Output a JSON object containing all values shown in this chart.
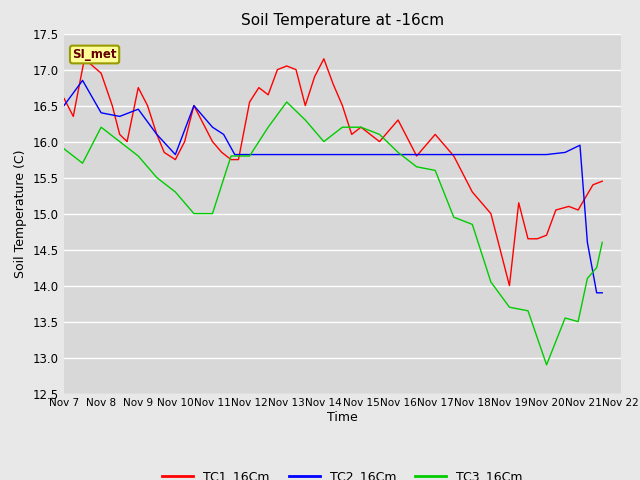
{
  "title": "Soil Temperature at -16cm",
  "xlabel": "Time",
  "ylabel": "Soil Temperature (C)",
  "ylim": [
    12.5,
    17.5
  ],
  "figure_bg": "#e8e8e8",
  "plot_bg": "#d8d8d8",
  "annotation_label": "SI_met",
  "annotation_bg": "#ffff99",
  "annotation_border": "#999900",
  "x_tick_labels": [
    "Nov 7",
    "Nov 8",
    "Nov 9",
    "Nov 10",
    "Nov 11",
    "Nov 12",
    "Nov 13",
    "Nov 14",
    "Nov 15",
    "Nov 16",
    "Nov 17",
    "Nov 18",
    "Nov 19",
    "Nov 20",
    "Nov 21",
    "Nov 22"
  ],
  "TC1_color": "#ff0000",
  "TC2_color": "#0000ff",
  "TC3_color": "#00cc00",
  "TC1_label": "TC1_16Cm",
  "TC2_label": "TC2_16Cm",
  "TC3_label": "TC3_16Cm",
  "TC1_x": [
    0,
    0.25,
    0.55,
    1.0,
    1.3,
    1.5,
    1.7,
    2.0,
    2.25,
    2.5,
    2.7,
    3.0,
    3.25,
    3.5,
    3.7,
    4.0,
    4.25,
    4.5,
    4.7,
    5.0,
    5.25,
    5.5,
    5.75,
    6.0,
    6.25,
    6.5,
    6.75,
    7.0,
    7.25,
    7.5,
    7.75,
    8.0,
    8.5,
    9.0,
    9.5,
    10.0,
    10.5,
    11.0,
    11.5,
    12.0,
    12.25,
    12.5,
    12.75,
    13.0,
    13.25,
    13.6,
    13.85,
    14.25,
    14.5
  ],
  "TC1_y": [
    16.6,
    16.35,
    17.15,
    16.95,
    16.5,
    16.1,
    16.0,
    16.75,
    16.5,
    16.1,
    15.85,
    15.75,
    16.0,
    16.5,
    16.3,
    16.0,
    15.85,
    15.75,
    15.75,
    16.55,
    16.75,
    16.65,
    17.0,
    17.05,
    17.0,
    16.5,
    16.9,
    17.15,
    16.8,
    16.5,
    16.1,
    16.2,
    16.0,
    16.3,
    15.8,
    16.1,
    15.8,
    15.3,
    15.0,
    14.0,
    15.15,
    14.65,
    14.65,
    14.7,
    15.05,
    15.1,
    15.05,
    15.4,
    15.45
  ],
  "TC2_x": [
    0,
    0.5,
    1.0,
    1.5,
    2.0,
    2.5,
    3.0,
    3.5,
    4.0,
    4.3,
    4.6,
    5.0,
    5.5,
    6.0,
    6.5,
    7.0,
    7.5,
    8.0,
    8.5,
    9.0,
    9.5,
    10.0,
    10.5,
    11.0,
    11.5,
    12.0,
    12.5,
    13.0,
    13.5,
    13.9,
    14.1,
    14.35,
    14.5
  ],
  "TC2_y": [
    16.5,
    16.85,
    16.4,
    16.35,
    16.45,
    16.1,
    15.82,
    16.5,
    16.2,
    16.1,
    15.82,
    15.82,
    15.82,
    15.82,
    15.82,
    15.82,
    15.82,
    15.82,
    15.82,
    15.82,
    15.82,
    15.82,
    15.82,
    15.82,
    15.82,
    15.82,
    15.82,
    15.82,
    15.85,
    15.95,
    14.6,
    13.9,
    13.9
  ],
  "TC3_x": [
    0,
    0.5,
    1.0,
    1.5,
    2.0,
    2.5,
    3.0,
    3.5,
    4.0,
    4.5,
    5.0,
    5.5,
    6.0,
    6.5,
    7.0,
    7.5,
    8.0,
    8.5,
    9.0,
    9.5,
    10.0,
    10.5,
    11.0,
    11.5,
    12.0,
    12.5,
    13.0,
    13.5,
    13.85,
    14.1,
    14.35,
    14.5
  ],
  "TC3_y": [
    15.9,
    15.7,
    16.2,
    16.0,
    15.8,
    15.5,
    15.3,
    15.0,
    15.0,
    15.8,
    15.8,
    16.2,
    16.55,
    16.3,
    16.0,
    16.2,
    16.2,
    16.1,
    15.85,
    15.65,
    15.6,
    14.95,
    14.85,
    14.05,
    13.7,
    13.65,
    12.9,
    13.55,
    13.5,
    14.1,
    14.25,
    14.6
  ]
}
